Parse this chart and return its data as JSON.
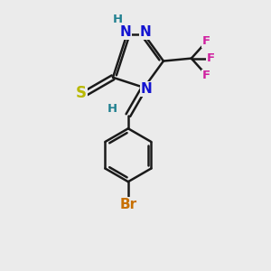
{
  "bg_color": "#ebebeb",
  "bond_color": "#1a1a1a",
  "N_color": "#1414d0",
  "S_color": "#b8b800",
  "F_color": "#d020a0",
  "Br_color": "#c87000",
  "H_color": "#208090",
  "line_width": 1.8,
  "font_size": 11,
  "font_size_small": 9.5,
  "figsize": [
    3.0,
    3.0
  ],
  "dpi": 100,
  "xlim": [
    0,
    10
  ],
  "ylim": [
    0,
    10
  ]
}
